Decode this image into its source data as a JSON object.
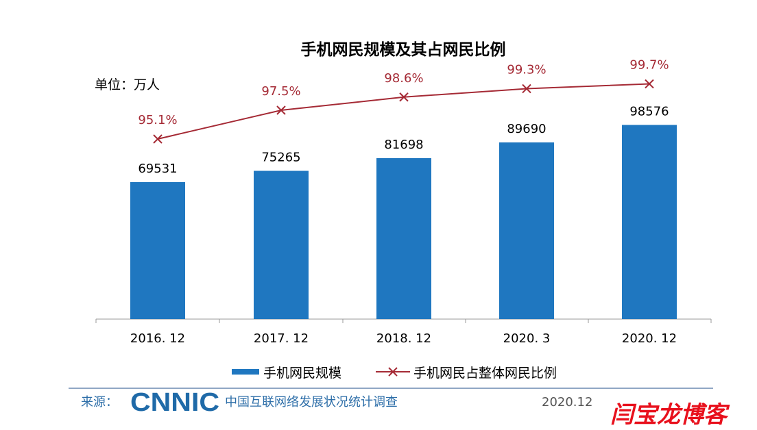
{
  "chart_data": {
    "type": "bar+line",
    "title": "手机网民规模及其占网民比例",
    "unit_label": "单位：万人",
    "categories": [
      "2016. 12",
      "2017. 12",
      "2018. 12",
      "2020. 3",
      "2020. 12"
    ],
    "series": [
      {
        "name": "手机网民规模",
        "type": "bar",
        "color": "#1f77c0",
        "values": [
          69531,
          75265,
          81698,
          89690,
          98576
        ],
        "labels": [
          "69531",
          "75265",
          "81698",
          "89690",
          "98576"
        ]
      },
      {
        "name": "手机网民占整体网民比例",
        "type": "line",
        "color": "#a52a35",
        "marker": "x",
        "values": [
          95.1,
          97.5,
          98.6,
          99.3,
          99.7
        ],
        "labels": [
          "95.1%",
          "97.5%",
          "98.6%",
          "99.3%",
          "99.7%"
        ]
      }
    ],
    "legend": "bottom",
    "grid": false
  },
  "footer": {
    "source_label": "来源：",
    "logo": "CNNIC",
    "source_text": "中国互联网络发展状况统计调查",
    "date": "2020.12",
    "watermark_text": "闫宝龙博客"
  },
  "watermark": "CNNIC"
}
